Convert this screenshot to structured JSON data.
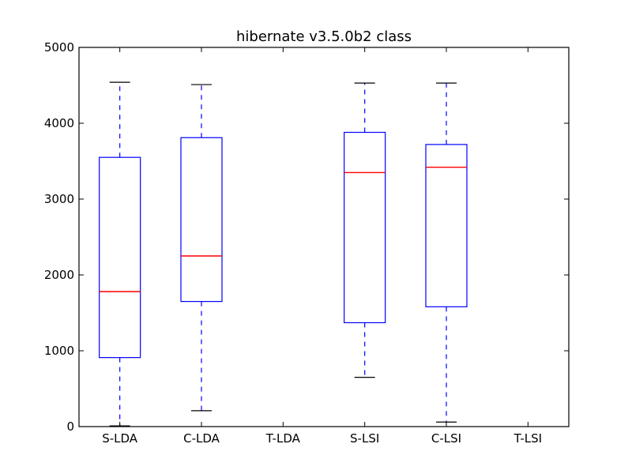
{
  "chart_data": {
    "type": "boxplot",
    "title": "hibernate v3.5.0b2 class",
    "xlabel": "",
    "ylabel": "",
    "categories": [
      "S-LDA",
      "C-LDA",
      "T-LDA",
      "S-LSI",
      "C-LSI",
      "T-LSI"
    ],
    "ylim": [
      0,
      5000
    ],
    "yticks": [
      0,
      1000,
      2000,
      3000,
      4000,
      5000
    ],
    "grid": false,
    "boxes": [
      {
        "category": "S-LDA",
        "whisker_low": 10,
        "q1": 910,
        "median": 1780,
        "q3": 3550,
        "whisker_high": 4540
      },
      {
        "category": "C-LDA",
        "whisker_low": 210,
        "q1": 1650,
        "median": 2250,
        "q3": 3810,
        "whisker_high": 4510
      },
      {
        "category": "T-LDA",
        "empty": true
      },
      {
        "category": "S-LSI",
        "whisker_low": 650,
        "q1": 1370,
        "median": 3350,
        "q3": 3880,
        "whisker_high": 4530
      },
      {
        "category": "C-LSI",
        "whisker_low": 60,
        "q1": 1580,
        "median": 3420,
        "q3": 3720,
        "whisker_high": 4530
      },
      {
        "category": "T-LSI",
        "empty": true
      }
    ],
    "colors": {
      "box": "#0000ff",
      "median": "#ff0000",
      "cap": "#000000",
      "axes": "#000000"
    }
  }
}
